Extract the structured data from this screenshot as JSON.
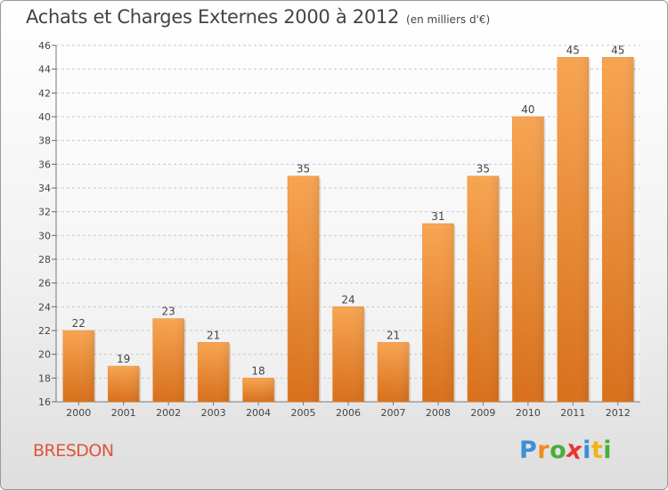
{
  "chart_data": {
    "type": "bar",
    "title": "Achats et Charges Externes 2000 à 2012",
    "unit_label": "(en milliers d'€)",
    "categories": [
      "2000",
      "2001",
      "2002",
      "2003",
      "2004",
      "2005",
      "2006",
      "2007",
      "2008",
      "2009",
      "2010",
      "2011",
      "2012"
    ],
    "values": [
      22,
      19,
      23,
      21,
      18,
      35,
      24,
      21,
      31,
      35,
      40,
      45,
      45
    ],
    "ylim": [
      16,
      46
    ],
    "yticks": [
      16,
      18,
      20,
      22,
      24,
      26,
      28,
      30,
      32,
      34,
      36,
      38,
      40,
      42,
      44,
      46
    ],
    "grid": true,
    "bar_color_top": "#f7a552",
    "bar_color_bottom": "#d8701c",
    "xlabel": "",
    "ylabel": ""
  },
  "commune": "BRESDON",
  "logo": {
    "letters": [
      "P",
      "r",
      "o",
      "x",
      "i",
      "t",
      "i"
    ],
    "colors": [
      "#3b8fd6",
      "#f28a1c",
      "#4aae3a",
      "#e8352b",
      "#3b8fd6",
      "#f2b21c",
      "#4aae3a"
    ]
  }
}
